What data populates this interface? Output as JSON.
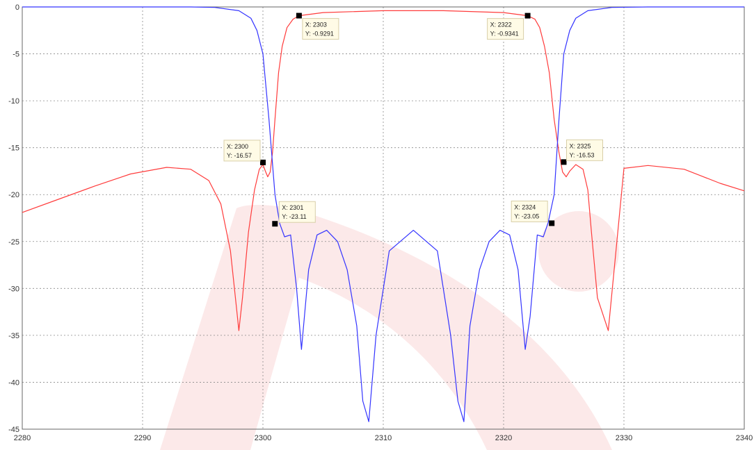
{
  "chart_data": {
    "type": "line",
    "title": "",
    "xlabel": "",
    "ylabel": "",
    "xlim": [
      2280,
      2340
    ],
    "ylim": [
      -45,
      0
    ],
    "xticks": [
      2280,
      2290,
      2300,
      2310,
      2320,
      2330,
      2340
    ],
    "yticks": [
      0,
      -5,
      -10,
      -15,
      -20,
      -25,
      -30,
      -35,
      -40,
      -45
    ],
    "grid": true,
    "colors": {
      "red_series": "#ff3b3b",
      "blue_series": "#3333ff",
      "grid": "#888888",
      "watermark": "#fbe3e3",
      "datatip_bg": "#fffbe6",
      "datatip_border": "#d8cfa8"
    },
    "series": [
      {
        "color": "red",
        "x": [
          2280,
          2283,
          2286,
          2289,
          2292,
          2294,
          2295.5,
          2296.5,
          2297.3,
          2297.8,
          2298.0,
          2298.3,
          2298.8,
          2299.3,
          2299.7,
          2300.0,
          2300.2,
          2300.4,
          2300.6,
          2300.8,
          2301.0,
          2301.3,
          2301.6,
          2302.0,
          2302.5,
          2303,
          2305,
          2310,
          2315,
          2320,
          2322,
          2322.6,
          2323.0,
          2323.4,
          2323.8,
          2324.2,
          2324.6,
          2324.9,
          2325.2,
          2325.5,
          2326.0,
          2326.6,
          2327.0,
          2327.3,
          2327.8,
          2328.7,
          2330,
          2332,
          2335,
          2338,
          2340
        ],
        "y": [
          -21.9,
          -20.5,
          -19.1,
          -17.8,
          -17.1,
          -17.3,
          -18.5,
          -21,
          -26,
          -32,
          -34.5,
          -31,
          -24,
          -19.5,
          -17.3,
          -16.8,
          -17.5,
          -18.1,
          -17.6,
          -15.5,
          -12,
          -7,
          -4.2,
          -2.2,
          -1.3,
          -0.93,
          -0.6,
          -0.4,
          -0.4,
          -0.6,
          -0.93,
          -1.3,
          -2.2,
          -4.2,
          -7,
          -12,
          -15.5,
          -17.6,
          -18.1,
          -17.5,
          -16.8,
          -17.3,
          -19.5,
          -24,
          -31,
          -34.5,
          -17.2,
          -16.9,
          -17.3,
          -18.8,
          -19.6
        ]
      },
      {
        "color": "blue",
        "x": [
          2280,
          2285,
          2290,
          2294,
          2296,
          2298,
          2299,
          2299.5,
          2300.0,
          2300.5,
          2301.0,
          2301.4,
          2301.8,
          2302.3,
          2302.8,
          2303.2,
          2303.8,
          2304.5,
          2305.3,
          2306.2,
          2307.0,
          2307.8,
          2308.3,
          2308.8,
          2309.4,
          2310.5,
          2312.5,
          2314.5,
          2315.6,
          2316.2,
          2316.7,
          2317.2,
          2318.0,
          2318.8,
          2319.7,
          2320.5,
          2321.2,
          2321.8,
          2322.2,
          2322.8,
          2323.3,
          2323.7,
          2324.2,
          2324.6,
          2325.0,
          2325.5,
          2326.0,
          2327,
          2329,
          2332,
          2336,
          2340
        ],
        "y": [
          0,
          0,
          0,
          0,
          -0.05,
          -0.4,
          -1.2,
          -2.5,
          -5,
          -12,
          -20,
          -23.1,
          -24.5,
          -24.3,
          -30,
          -36.5,
          -28,
          -24.3,
          -23.8,
          -25,
          -28,
          -34,
          -42,
          -44.2,
          -35,
          -26,
          -23.8,
          -26,
          -35,
          -42,
          -44.2,
          -34,
          -28,
          -25,
          -23.8,
          -24.3,
          -28,
          -36.5,
          -33,
          -24.3,
          -24.5,
          -23.0,
          -20,
          -12,
          -5,
          -2.5,
          -1.2,
          -0.4,
          -0.05,
          0,
          0,
          0
        ]
      }
    ],
    "datatips": [
      {
        "x": 2303,
        "y": -0.9291,
        "line1": "X: 2303",
        "line2": "Y: -0.9291"
      },
      {
        "x": 2322,
        "y": -0.9341,
        "line1": "X: 2322",
        "line2": "Y: -0.9341"
      },
      {
        "x": 2300,
        "y": -16.57,
        "line1": "X: 2300",
        "line2": "Y: -16.57"
      },
      {
        "x": 2325,
        "y": -16.53,
        "line1": "X: 2325",
        "line2": "Y: -16.53"
      },
      {
        "x": 2301,
        "y": -23.11,
        "line1": "X: 2301",
        "line2": "Y: -23.11"
      },
      {
        "x": 2324,
        "y": -23.05,
        "line1": "X: 2324",
        "line2": "Y: -23.05"
      }
    ]
  }
}
